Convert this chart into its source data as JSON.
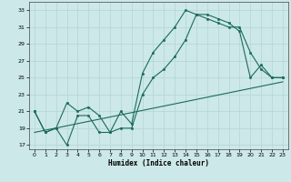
{
  "title": "",
  "xlabel": "Humidex (Indice chaleur)",
  "bg_color": "#cce8e8",
  "grid_color": "#b8d8d8",
  "line_color": "#1a6b5a",
  "xlim": [
    -0.5,
    23.5
  ],
  "ylim": [
    16.5,
    34.0
  ],
  "xticks": [
    0,
    1,
    2,
    3,
    4,
    5,
    6,
    7,
    8,
    9,
    10,
    11,
    12,
    13,
    14,
    15,
    16,
    17,
    18,
    19,
    20,
    21,
    22,
    23
  ],
  "yticks": [
    17,
    19,
    21,
    23,
    25,
    27,
    29,
    31,
    33
  ],
  "line1_x": [
    0,
    1,
    2,
    3,
    4,
    5,
    6,
    7,
    8,
    9,
    10,
    11,
    12,
    13,
    14,
    15,
    16,
    17,
    18,
    19,
    20,
    21,
    22,
    23
  ],
  "line1_y": [
    21.0,
    18.5,
    19.0,
    17.0,
    20.5,
    20.5,
    18.5,
    18.5,
    21.0,
    19.5,
    25.5,
    28.0,
    29.5,
    31.0,
    33.0,
    32.5,
    32.0,
    31.5,
    31.0,
    31.0,
    28.0,
    26.0,
    25.0,
    25.0
  ],
  "line2_x": [
    0,
    1,
    2,
    3,
    4,
    5,
    6,
    7,
    8,
    9,
    10,
    11,
    12,
    13,
    14,
    15,
    16,
    17,
    18,
    19,
    20,
    21,
    22,
    23
  ],
  "line2_y": [
    21.0,
    18.5,
    19.0,
    22.0,
    21.0,
    21.5,
    20.5,
    18.5,
    19.0,
    19.0,
    23.0,
    25.0,
    26.0,
    27.5,
    29.5,
    32.5,
    32.5,
    32.0,
    31.5,
    30.5,
    25.0,
    26.5,
    25.0,
    25.0
  ],
  "line3_x": [
    0,
    23
  ],
  "line3_y": [
    18.5,
    24.5
  ]
}
